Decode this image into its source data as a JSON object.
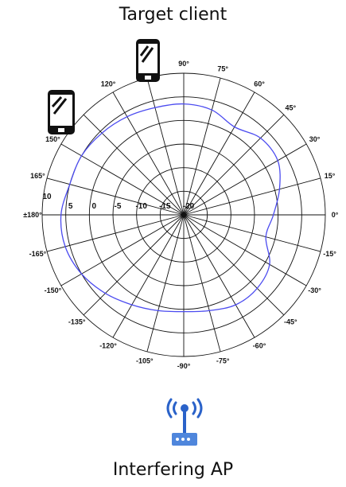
{
  "titles": {
    "top": "Target client",
    "bottom": "Interfering AP"
  },
  "icons": {
    "client_upper": "smartphone-icon",
    "client_left": "smartphone-icon",
    "ap": "wifi-router-icon"
  },
  "colors": {
    "pattern": "#4b4bf0",
    "grid": "#111111",
    "router": "#2a62c9",
    "router_body": "#4f86dc"
  },
  "chart_data": {
    "type": "polar",
    "angle_labels": [
      "0°",
      "15°",
      "30°",
      "45°",
      "60°",
      "75°",
      "90°",
      "120°",
      "150°",
      "165°",
      "±180°",
      "-165°",
      "-150°",
      "-135°",
      "-120°",
      "-105°",
      "-90°",
      "-75°",
      "-60°",
      "-45°",
      "-30°",
      "-15°"
    ],
    "radial_labels": [
      "10",
      "5",
      "0",
      "-5",
      "-10",
      "-15",
      "-20"
    ],
    "radial_range": [
      -20,
      10
    ],
    "series": [
      {
        "angles": [
          0,
          15,
          30,
          45,
          60,
          75,
          90,
          105,
          120,
          135,
          150,
          165,
          180,
          195,
          210,
          225,
          240,
          255,
          270,
          285,
          300,
          315,
          330,
          345
        ],
        "values": [
          -1,
          1,
          3,
          3,
          1.5,
          3,
          3.5,
          3.5,
          4,
          4.5,
          5,
          5,
          6,
          6,
          5,
          3.5,
          2,
          1,
          0.5,
          1,
          2,
          2,
          1,
          -2
        ]
      }
    ]
  }
}
